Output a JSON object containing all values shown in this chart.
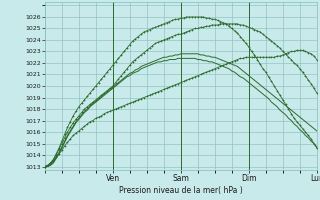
{
  "bg_color": "#c8eaea",
  "grid_color": "#88bbbb",
  "line_color": "#2d6a2d",
  "xlabel_text": "Pression niveau de la mer( hPa )",
  "ymin": 1013,
  "ymax": 1027,
  "yticks": [
    1013,
    1014,
    1015,
    1016,
    1017,
    1018,
    1019,
    1020,
    1021,
    1022,
    1023,
    1024,
    1025,
    1026
  ],
  "xmin": 0,
  "xmax": 96,
  "xtick_positions": [
    0,
    24,
    48,
    72,
    96
  ],
  "xtick_labels": [
    "",
    "Ven",
    "Sam",
    "Dim",
    "Lun"
  ],
  "vline_positions": [
    24,
    48,
    72,
    96
  ],
  "series": [
    {
      "x": [
        0,
        1,
        2,
        3,
        4,
        5,
        6,
        7,
        8,
        9,
        10,
        11,
        12,
        13,
        14,
        15,
        16,
        17,
        18,
        19,
        20,
        21,
        22,
        23,
        24,
        25,
        26,
        27,
        28,
        29,
        30,
        31,
        32,
        33,
        34,
        35,
        36,
        37,
        38,
        39,
        40,
        41,
        42,
        43,
        44,
        45,
        46,
        47,
        48,
        49,
        50,
        51,
        52,
        53,
        54,
        55,
        56,
        57,
        58,
        59,
        60,
        61,
        62,
        63,
        64,
        65,
        66,
        67,
        68,
        69,
        70,
        71,
        72,
        73,
        74,
        75,
        76,
        77,
        78,
        79,
        80,
        81,
        82,
        83,
        84,
        85,
        86,
        87,
        88,
        89,
        90,
        91,
        92,
        93,
        94,
        95,
        96
      ],
      "y": [
        1013.0,
        1013.1,
        1013.3,
        1013.5,
        1013.8,
        1014.1,
        1014.4,
        1014.8,
        1015.1,
        1015.4,
        1015.7,
        1015.9,
        1016.1,
        1016.3,
        1016.5,
        1016.7,
        1016.9,
        1017.0,
        1017.2,
        1017.3,
        1017.4,
        1017.6,
        1017.7,
        1017.8,
        1017.9,
        1018.0,
        1018.1,
        1018.2,
        1018.3,
        1018.4,
        1018.5,
        1018.6,
        1018.7,
        1018.8,
        1018.9,
        1019.0,
        1019.1,
        1019.2,
        1019.3,
        1019.4,
        1019.5,
        1019.6,
        1019.7,
        1019.8,
        1019.9,
        1020.0,
        1020.1,
        1020.2,
        1020.3,
        1020.4,
        1020.5,
        1020.6,
        1020.7,
        1020.8,
        1020.9,
        1021.0,
        1021.1,
        1021.2,
        1021.3,
        1021.4,
        1021.5,
        1021.6,
        1021.7,
        1021.8,
        1021.9,
        1022.0,
        1022.1,
        1022.2,
        1022.3,
        1022.4,
        1022.4,
        1022.5,
        1022.5,
        1022.5,
        1022.5,
        1022.5,
        1022.5,
        1022.5,
        1022.5,
        1022.5,
        1022.5,
        1022.5,
        1022.6,
        1022.6,
        1022.7,
        1022.8,
        1022.9,
        1023.0,
        1023.0,
        1023.1,
        1023.1,
        1023.1,
        1023.0,
        1022.9,
        1022.8,
        1022.6,
        1022.3
      ],
      "marker": true
    },
    {
      "x": [
        0,
        1,
        2,
        3,
        4,
        5,
        6,
        7,
        8,
        9,
        10,
        11,
        12,
        13,
        14,
        15,
        16,
        17,
        18,
        19,
        20,
        21,
        22,
        23,
        24,
        25,
        26,
        27,
        28,
        29,
        30,
        31,
        32,
        33,
        34,
        35,
        36,
        37,
        38,
        39,
        40,
        41,
        42,
        43,
        44,
        45,
        46,
        47,
        48,
        49,
        50,
        51,
        52,
        53,
        54,
        55,
        56,
        57,
        58,
        59,
        60,
        61,
        62,
        63,
        64,
        65,
        66,
        67,
        68,
        69,
        70,
        71,
        72,
        73,
        74,
        75,
        76,
        77,
        78,
        79,
        80,
        81,
        82,
        83,
        84,
        85,
        86,
        87,
        88,
        89,
        90,
        91,
        92,
        93,
        94,
        95,
        96
      ],
      "y": [
        1013.0,
        1013.1,
        1013.3,
        1013.6,
        1014.0,
        1014.5,
        1015.0,
        1015.5,
        1016.0,
        1016.4,
        1016.8,
        1017.1,
        1017.4,
        1017.7,
        1018.0,
        1018.2,
        1018.4,
        1018.6,
        1018.8,
        1019.0,
        1019.2,
        1019.4,
        1019.6,
        1019.8,
        1020.0,
        1020.3,
        1020.6,
        1020.9,
        1021.2,
        1021.5,
        1021.8,
        1022.1,
        1022.3,
        1022.5,
        1022.7,
        1022.9,
        1023.1,
        1023.3,
        1023.5,
        1023.7,
        1023.8,
        1023.9,
        1024.0,
        1024.1,
        1024.2,
        1024.3,
        1024.4,
        1024.5,
        1024.5,
        1024.6,
        1024.7,
        1024.8,
        1024.9,
        1025.0,
        1025.0,
        1025.1,
        1025.1,
        1025.2,
        1025.2,
        1025.3,
        1025.3,
        1025.3,
        1025.4,
        1025.4,
        1025.4,
        1025.4,
        1025.4,
        1025.4,
        1025.4,
        1025.3,
        1025.3,
        1025.2,
        1025.1,
        1025.0,
        1024.9,
        1024.8,
        1024.7,
        1024.5,
        1024.3,
        1024.1,
        1023.9,
        1023.7,
        1023.5,
        1023.3,
        1023.0,
        1022.8,
        1022.5,
        1022.3,
        1022.0,
        1021.8,
        1021.5,
        1021.2,
        1020.9,
        1020.5,
        1020.2,
        1019.8,
        1019.4
      ],
      "marker": true
    },
    {
      "x": [
        0,
        1,
        2,
        3,
        4,
        5,
        6,
        7,
        8,
        9,
        10,
        11,
        12,
        13,
        14,
        15,
        16,
        17,
        18,
        19,
        20,
        21,
        22,
        23,
        24,
        25,
        26,
        27,
        28,
        29,
        30,
        31,
        32,
        33,
        34,
        35,
        36,
        37,
        38,
        39,
        40,
        41,
        42,
        43,
        44,
        45,
        46,
        47,
        48,
        49,
        50,
        51,
        52,
        53,
        54,
        55,
        56,
        57,
        58,
        59,
        60,
        61,
        62,
        63,
        64,
        65,
        66,
        67,
        68,
        69,
        70,
        71,
        72,
        73,
        74,
        75,
        76,
        77,
        78,
        79,
        80,
        81,
        82,
        83,
        84,
        85,
        86,
        87,
        88,
        89,
        90,
        91,
        92,
        93,
        94,
        95,
        96
      ],
      "y": [
        1013.0,
        1013.1,
        1013.3,
        1013.6,
        1014.1,
        1014.6,
        1015.2,
        1015.8,
        1016.4,
        1016.9,
        1017.4,
        1017.8,
        1018.2,
        1018.5,
        1018.8,
        1019.1,
        1019.4,
        1019.7,
        1020.0,
        1020.3,
        1020.6,
        1020.9,
        1021.2,
        1021.5,
        1021.8,
        1022.1,
        1022.4,
        1022.7,
        1023.0,
        1023.3,
        1023.6,
        1023.9,
        1024.1,
        1024.3,
        1024.5,
        1024.7,
        1024.8,
        1024.9,
        1025.0,
        1025.1,
        1025.2,
        1025.3,
        1025.4,
        1025.5,
        1025.6,
        1025.7,
        1025.8,
        1025.8,
        1025.9,
        1025.9,
        1026.0,
        1026.0,
        1026.0,
        1026.0,
        1026.0,
        1026.0,
        1026.0,
        1025.9,
        1025.9,
        1025.8,
        1025.8,
        1025.7,
        1025.6,
        1025.5,
        1025.4,
        1025.2,
        1025.0,
        1024.8,
        1024.6,
        1024.3,
        1024.0,
        1023.7,
        1023.4,
        1023.0,
        1022.7,
        1022.3,
        1021.9,
        1021.5,
        1021.2,
        1020.8,
        1020.4,
        1020.0,
        1019.6,
        1019.2,
        1018.8,
        1018.4,
        1018.0,
        1017.6,
        1017.2,
        1016.9,
        1016.6,
        1016.3,
        1016.0,
        1015.7,
        1015.4,
        1015.0,
        1014.6
      ],
      "marker": true
    },
    {
      "x": [
        0,
        1,
        2,
        3,
        4,
        5,
        6,
        7,
        8,
        9,
        10,
        11,
        12,
        13,
        14,
        15,
        16,
        17,
        18,
        19,
        20,
        21,
        22,
        23,
        24,
        25,
        26,
        27,
        28,
        29,
        30,
        31,
        32,
        33,
        34,
        35,
        36,
        37,
        38,
        39,
        40,
        41,
        42,
        43,
        44,
        45,
        46,
        47,
        48,
        49,
        50,
        51,
        52,
        53,
        54,
        55,
        56,
        57,
        58,
        59,
        60,
        61,
        62,
        63,
        64,
        65,
        66,
        67,
        68,
        69,
        70,
        71,
        72,
        73,
        74,
        75,
        76,
        77,
        78,
        79,
        80,
        81,
        82,
        83,
        84,
        85,
        86,
        87,
        88,
        89,
        90,
        91,
        92,
        93,
        94,
        95,
        96
      ],
      "y": [
        1013.0,
        1013.0,
        1013.2,
        1013.4,
        1013.8,
        1014.2,
        1014.7,
        1015.2,
        1015.7,
        1016.1,
        1016.5,
        1016.9,
        1017.2,
        1017.5,
        1017.8,
        1018.0,
        1018.3,
        1018.5,
        1018.7,
        1018.9,
        1019.1,
        1019.3,
        1019.5,
        1019.7,
        1019.9,
        1020.1,
        1020.3,
        1020.5,
        1020.7,
        1020.9,
        1021.1,
        1021.2,
        1021.4,
        1021.5,
        1021.7,
        1021.8,
        1021.9,
        1022.0,
        1022.1,
        1022.2,
        1022.3,
        1022.4,
        1022.5,
        1022.5,
        1022.6,
        1022.6,
        1022.7,
        1022.7,
        1022.8,
        1022.8,
        1022.8,
        1022.8,
        1022.8,
        1022.8,
        1022.8,
        1022.7,
        1022.7,
        1022.6,
        1022.6,
        1022.5,
        1022.5,
        1022.4,
        1022.3,
        1022.2,
        1022.1,
        1022.0,
        1021.9,
        1021.8,
        1021.7,
        1021.5,
        1021.3,
        1021.1,
        1020.9,
        1020.7,
        1020.5,
        1020.3,
        1020.1,
        1019.9,
        1019.7,
        1019.5,
        1019.3,
        1019.1,
        1018.9,
        1018.7,
        1018.5,
        1018.3,
        1018.1,
        1017.9,
        1017.7,
        1017.5,
        1017.3,
        1017.1,
        1016.9,
        1016.7,
        1016.5,
        1016.3,
        1016.1
      ],
      "marker": false
    },
    {
      "x": [
        0,
        1,
        2,
        3,
        4,
        5,
        6,
        7,
        8,
        9,
        10,
        11,
        12,
        13,
        14,
        15,
        16,
        17,
        18,
        19,
        20,
        21,
        22,
        23,
        24,
        25,
        26,
        27,
        28,
        29,
        30,
        31,
        32,
        33,
        34,
        35,
        36,
        37,
        38,
        39,
        40,
        41,
        42,
        43,
        44,
        45,
        46,
        47,
        48,
        49,
        50,
        51,
        52,
        53,
        54,
        55,
        56,
        57,
        58,
        59,
        60,
        61,
        62,
        63,
        64,
        65,
        66,
        67,
        68,
        69,
        70,
        71,
        72,
        73,
        74,
        75,
        76,
        77,
        78,
        79,
        80,
        81,
        82,
        83,
        84,
        85,
        86,
        87,
        88,
        89,
        90,
        91,
        92,
        93,
        94,
        95,
        96
      ],
      "y": [
        1013.0,
        1013.0,
        1013.1,
        1013.3,
        1013.7,
        1014.1,
        1014.6,
        1015.1,
        1015.6,
        1016.0,
        1016.4,
        1016.8,
        1017.1,
        1017.4,
        1017.7,
        1017.9,
        1018.2,
        1018.4,
        1018.6,
        1018.8,
        1019.0,
        1019.2,
        1019.4,
        1019.6,
        1019.8,
        1020.0,
        1020.2,
        1020.4,
        1020.6,
        1020.8,
        1020.9,
        1021.1,
        1021.2,
        1021.3,
        1021.5,
        1021.6,
        1021.7,
        1021.8,
        1021.9,
        1022.0,
        1022.1,
        1022.1,
        1022.2,
        1022.2,
        1022.3,
        1022.3,
        1022.3,
        1022.4,
        1022.4,
        1022.4,
        1022.4,
        1022.4,
        1022.4,
        1022.4,
        1022.3,
        1022.3,
        1022.2,
        1022.2,
        1022.1,
        1022.1,
        1022.0,
        1021.9,
        1021.8,
        1021.7,
        1021.6,
        1021.5,
        1021.3,
        1021.2,
        1021.0,
        1020.8,
        1020.7,
        1020.5,
        1020.3,
        1020.1,
        1019.9,
        1019.7,
        1019.5,
        1019.3,
        1019.1,
        1018.9,
        1018.6,
        1018.4,
        1018.2,
        1017.9,
        1017.7,
        1017.5,
        1017.2,
        1017.0,
        1016.7,
        1016.5,
        1016.2,
        1016.0,
        1015.7,
        1015.5,
        1015.2,
        1015.0,
        1014.7
      ],
      "marker": false
    }
  ]
}
